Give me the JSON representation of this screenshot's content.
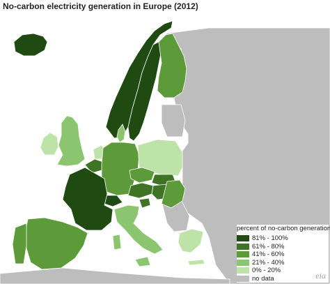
{
  "title": "No-carbon electricity generation in Europe (2012)",
  "legend": {
    "title": "percent of no-carbon generation",
    "items": [
      {
        "label": "81% - 100%",
        "color": "#1f4a11"
      },
      {
        "label": "61% - 80%",
        "color": "#3e7424"
      },
      {
        "label": "41% - 60%",
        "color": "#5c9a3a"
      },
      {
        "label": "21% - 40%",
        "color": "#8cc56f"
      },
      {
        "label": "0% - 20%",
        "color": "#bde3a8"
      },
      {
        "label": "no data",
        "color": "#bdbdbd"
      }
    ]
  },
  "map_colors": {
    "sea": "#ffffff",
    "border": "#ffffff"
  },
  "logo": {
    "text": "eia"
  }
}
